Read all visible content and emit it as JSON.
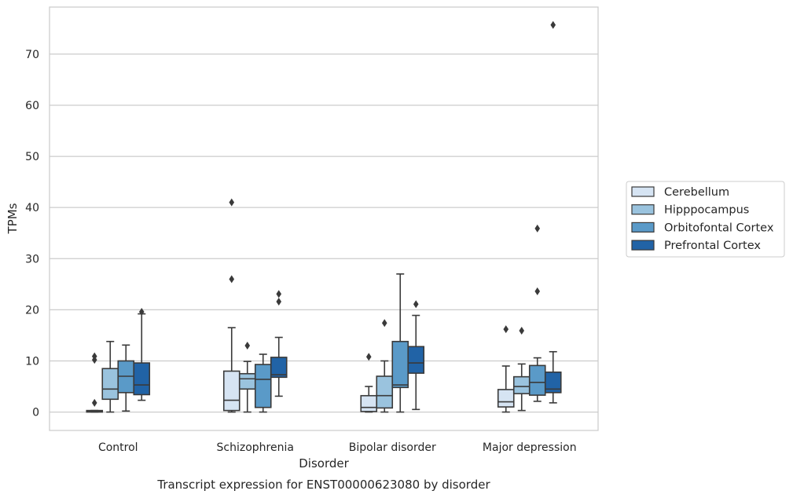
{
  "chart_data": {
    "type": "box",
    "caption": "Transcript expression for ENST00000623080 by disorder",
    "xlabel": "Disorder",
    "ylabel": "TPMs",
    "ylim": [
      -3.6,
      79.2
    ],
    "yticks": [
      0,
      10,
      20,
      30,
      40,
      50,
      60,
      70
    ],
    "grid": "horizontal",
    "legend_position": "right, outside plot",
    "categories": [
      "Control",
      "Schizophrenia",
      "Bipolar disorder",
      "Major depression"
    ],
    "series": [
      {
        "name": "Cerebellum",
        "color": "#d6e4f3",
        "boxes": [
          {
            "min": 0,
            "q1": 0,
            "median": 0.1,
            "q3": 0.3,
            "max": 0.3,
            "outliers": [
              1.8,
              10.2,
              10.9
            ]
          },
          {
            "min": 0,
            "q1": 0.3,
            "median": 2.3,
            "q3": 8.0,
            "max": 16.5,
            "outliers": [
              26.0,
              41.0
            ]
          },
          {
            "min": 0,
            "q1": 0.1,
            "median": 0.9,
            "q3": 3.2,
            "max": 5.0,
            "outliers": [
              10.8
            ]
          },
          {
            "min": 0,
            "q1": 1.0,
            "median": 2.0,
            "q3": 4.4,
            "max": 9.0,
            "outliers": [
              16.2
            ]
          }
        ]
      },
      {
        "name": "Hipppocampus",
        "color": "#9ac3de",
        "boxes": [
          {
            "min": 0,
            "q1": 2.5,
            "median": 4.5,
            "q3": 8.5,
            "max": 13.8,
            "outliers": []
          },
          {
            "min": 0,
            "q1": 4.5,
            "median": 6.5,
            "q3": 7.5,
            "max": 9.9,
            "outliers": [
              13.0
            ]
          },
          {
            "min": 0,
            "q1": 0.8,
            "median": 3.2,
            "q3": 7.0,
            "max": 10.0,
            "outliers": [
              17.4
            ]
          },
          {
            "min": 0.3,
            "q1": 3.6,
            "median": 5.0,
            "q3": 6.9,
            "max": 9.4,
            "outliers": [
              15.9
            ]
          }
        ]
      },
      {
        "name": "Orbitofontal Cortex",
        "color": "#5a9ac8",
        "boxes": [
          {
            "min": 0.2,
            "q1": 3.8,
            "median": 7.0,
            "q3": 10.0,
            "max": 13.1,
            "outliers": []
          },
          {
            "min": 0,
            "q1": 0.9,
            "median": 6.4,
            "q3": 9.3,
            "max": 11.3,
            "outliers": []
          },
          {
            "min": 0,
            "q1": 4.8,
            "median": 5.3,
            "q3": 13.8,
            "max": 27.0,
            "outliers": []
          },
          {
            "min": 2.1,
            "q1": 3.3,
            "median": 5.8,
            "q3": 9.1,
            "max": 10.6,
            "outliers": [
              23.6,
              35.9
            ]
          }
        ]
      },
      {
        "name": "Prefrontal Cortex",
        "color": "#2163a6",
        "boxes": [
          {
            "min": 2.3,
            "q1": 3.4,
            "median": 5.3,
            "q3": 9.6,
            "max": 19.2,
            "outliers": [
              19.6
            ]
          },
          {
            "min": 3.1,
            "q1": 6.8,
            "median": 7.3,
            "q3": 10.7,
            "max": 14.6,
            "outliers": [
              21.6,
              23.1
            ]
          },
          {
            "min": 0.5,
            "q1": 7.6,
            "median": 9.6,
            "q3": 12.8,
            "max": 18.9,
            "outliers": [
              21.1
            ]
          },
          {
            "min": 1.8,
            "q1": 3.8,
            "median": 4.5,
            "q3": 7.8,
            "max": 11.8,
            "outliers": [
              75.7
            ]
          }
        ]
      }
    ]
  }
}
